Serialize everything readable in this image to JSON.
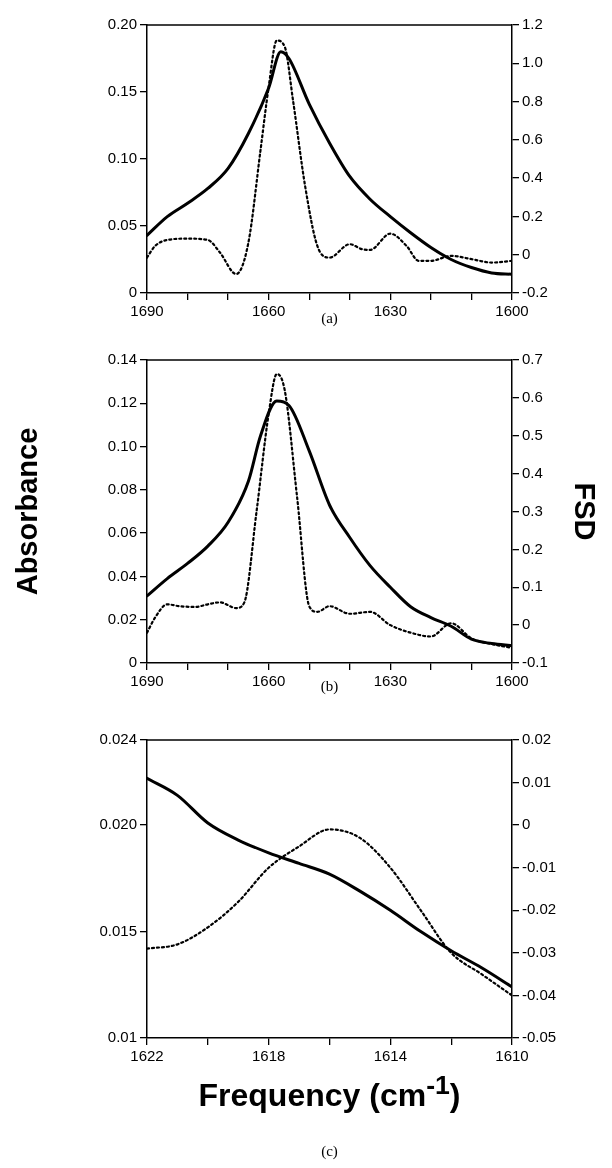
{
  "chart_data": [
    {
      "type": "line",
      "annotations": [
        "(a)"
      ],
      "x": [
        1690,
        1688,
        1685,
        1680,
        1675,
        1672,
        1670,
        1668,
        1665,
        1662,
        1660,
        1658,
        1657,
        1656,
        1655,
        1654,
        1651,
        1650,
        1648,
        1645,
        1640,
        1637,
        1635,
        1630,
        1626,
        1625,
        1623,
        1620,
        1615,
        1610,
        1605,
        1600
      ],
      "xlim": [
        1690,
        1600
      ],
      "xticks": [
        1690,
        {
          "value": 1680,
          "label": null
        },
        {
          "value": 1670,
          "label": null
        },
        1660,
        {
          "value": 1650,
          "label": null
        },
        {
          "value": 1640,
          "label": null
        },
        1630,
        {
          "value": 1620,
          "label": null
        },
        {
          "value": 1610,
          "label": null
        },
        1600
      ],
      "ylim": [
        0,
        0.2
      ],
      "yticks": [
        0,
        0.05,
        {
          "value": 0.1,
          "label": "0.10"
        },
        0.15,
        {
          "value": 0.2,
          "label": "0.20"
        }
      ],
      "y2lim": [
        -0.2,
        1.2
      ],
      "y2ticks": [
        -0.2,
        0,
        0.2,
        0.4,
        0.6,
        0.8,
        {
          "value": 1,
          "label": "1.0"
        },
        1.2
      ],
      "grid": false,
      "legend": false,
      "marker": "none",
      "series": [
        {
          "color": "#000000",
          "line_style": "solid",
          "axis": "y",
          "values": [
            0.043,
            null,
            0.057,
            0.067,
            0.078,
            null,
            0.093,
            null,
            0.119,
            null,
            0.153,
            null,
            0.18,
            null,
            0.175,
            null,
            null,
            0.141,
            null,
            0.112,
            0.087,
            null,
            0.07,
            0.057,
            null,
            0.045,
            null,
            0.034,
            0.025,
            0.019,
            0.015,
            0.014
          ]
        },
        {
          "color": "#000000",
          "line_style": "dotted",
          "axis": "y2",
          "values": [
            -0.015,
            0.046,
            0.077,
            0.084,
            0.077,
            0.011,
            null,
            -0.101,
            0.063,
            0.548,
            0.876,
            1.119,
            null,
            1.084,
            null,
            0.807,
            0.357,
            null,
            0.046,
            -0.015,
            0.055,
            0.029,
            0.025,
            0.11,
            0.046,
            null,
            -0.032,
            -0.032,
            -0.006,
            -0.023,
            -0.041,
            -0.032
          ]
        }
      ]
    },
    {
      "type": "line",
      "annotations": [
        "(b)"
      ],
      "ylabel": "Absorbance",
      "y2label": "FSD",
      "x": [
        1690,
        1688,
        1685,
        1682,
        1680,
        1678,
        1675,
        1672,
        1670,
        1668,
        1666,
        1665,
        1663,
        1662,
        1660,
        1658,
        1656,
        1655,
        1653,
        1650,
        1648,
        1645,
        1640,
        1635,
        1630,
        1625,
        1620,
        1615,
        1610,
        1605,
        1600
      ],
      "xlim": [
        1690,
        1600
      ],
      "xticks": [
        1690,
        {
          "value": 1680,
          "label": null
        },
        {
          "value": 1670,
          "label": null
        },
        1660,
        {
          "value": 1650,
          "label": null
        },
        {
          "value": 1640,
          "label": null
        },
        1630,
        {
          "value": 1620,
          "label": null
        },
        {
          "value": 1610,
          "label": null
        },
        1600
      ],
      "ylim": [
        0,
        0.14
      ],
      "yticks": [
        0,
        0.02,
        0.04,
        0.06,
        0.08,
        {
          "value": 0.1,
          "label": "0.10"
        },
        0.12,
        0.14
      ],
      "y2lim": [
        -0.1,
        0.7
      ],
      "y2ticks": [
        -0.1,
        0,
        0.1,
        0.2,
        0.3,
        0.4,
        0.5,
        0.6,
        0.7
      ],
      "grid": false,
      "legend": false,
      "marker": "none",
      "series": [
        {
          "color": "#000000",
          "line_style": "solid",
          "axis": "y",
          "values": [
            0.031,
            null,
            0.039,
            null,
            0.046,
            null,
            0.054,
            null,
            0.065,
            null,
            null,
            0.084,
            null,
            0.105,
            null,
            0.121,
            null,
            0.119,
            null,
            0.098,
            null,
            0.073,
            0.058,
            0.045,
            0.035,
            0.026,
            0.021,
            0.017,
            0.011,
            0.009,
            0.008
          ]
        },
        {
          "color": "#000000",
          "line_style": "dotted",
          "axis": "y2",
          "values": [
            -0.02,
            0.02,
            0.055,
            0.05,
            null,
            0.048,
            0.055,
            0.06,
            null,
            0.045,
            0.06,
            null,
            0.299,
            null,
            0.558,
            0.663,
            0.618,
            null,
            0.339,
            0.05,
            0.035,
            0.05,
            0.03,
            0.035,
            0,
            -0.02,
            -0.03,
            0.005,
            -0.035,
            -0.05,
            -0.06
          ]
        }
      ]
    },
    {
      "type": "line",
      "annotations": [
        "(c)"
      ],
      "xlabel": "Frequency (cm$^{-1}$)",
      "x": [
        1622,
        1621,
        1620,
        1619,
        1618,
        1617,
        1616,
        1615,
        1614,
        1613,
        1612,
        1611,
        1610
      ],
      "xlim": [
        1622,
        1610
      ],
      "xticks": [
        1622,
        {
          "value": 1620,
          "label": null
        },
        1618,
        {
          "value": 1616,
          "label": null
        },
        1614,
        {
          "value": 1612,
          "label": null
        },
        1610
      ],
      "ylim": [
        0.01,
        0.024
      ],
      "yticks": [
        0.01,
        0.015,
        {
          "value": 0.02,
          "label": "0.020"
        },
        0.024
      ],
      "y2lim": [
        -0.05,
        0.02
      ],
      "y2ticks": [
        -0.05,
        -0.04,
        -0.03,
        -0.02,
        -0.01,
        0,
        0.01,
        0.02
      ],
      "grid": false,
      "legend": false,
      "marker": "none",
      "series": [
        {
          "color": "#000000",
          "line_style": "solid",
          "axis": "y",
          "values": [
            0.0222,
            0.0214,
            0.0201,
            0.0193,
            0.0187,
            0.0182,
            0.0177,
            0.0169,
            0.016,
            0.015,
            0.0141,
            0.0133,
            0.0124
          ]
        },
        {
          "color": "#000000",
          "line_style": "dotted",
          "axis": "y2",
          "values": [
            -0.029,
            -0.028,
            -0.024,
            -0.018,
            -0.01,
            -0.005,
            -0.001,
            -0.003,
            -0.01,
            -0.02,
            -0.03,
            -0.035,
            -0.04
          ]
        }
      ]
    }
  ]
}
